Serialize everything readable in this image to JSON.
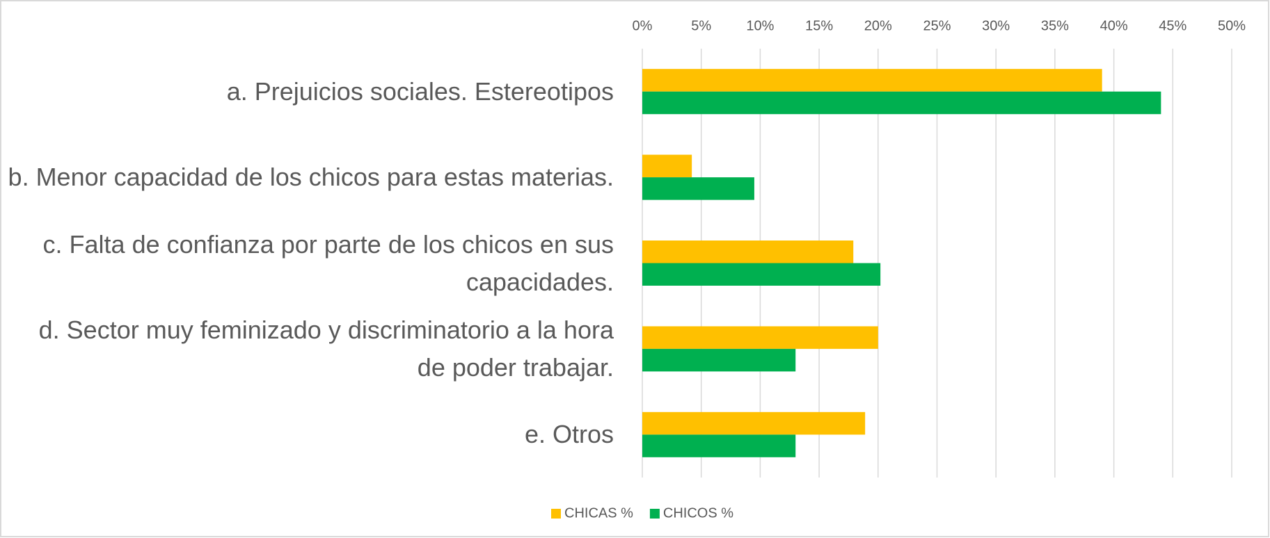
{
  "chart_data": {
    "type": "bar",
    "orientation": "horizontal",
    "categories": [
      "a. Prejuicios sociales. Estereotipos",
      "b. Menor capacidad de los chicos para estas materias.",
      "c. Falta de confianza por parte de los chicos en sus capacidades.",
      "d. Sector muy feminizado y discriminatorio a la hora de poder trabajar.",
      "e. Otros"
    ],
    "series": [
      {
        "name": "CHICAS %",
        "color": "#ffc000",
        "values": [
          39,
          4.2,
          17.9,
          20,
          18.9
        ]
      },
      {
        "name": "CHICOS %",
        "color": "#00b050",
        "values": [
          44,
          9.5,
          20.2,
          13,
          13
        ]
      }
    ],
    "xlim": [
      0,
      50
    ],
    "xticks": [
      {
        "value": 0,
        "label": "0%"
      },
      {
        "value": 5,
        "label": "5%"
      },
      {
        "value": 10,
        "label": "10%"
      },
      {
        "value": 15,
        "label": "15%"
      },
      {
        "value": 20,
        "label": "20%"
      },
      {
        "value": 25,
        "label": "25%"
      },
      {
        "value": 30,
        "label": "30%"
      },
      {
        "value": 35,
        "label": "35%"
      },
      {
        "value": 40,
        "label": "40%"
      },
      {
        "value": 45,
        "label": "45%"
      },
      {
        "value": 50,
        "label": "50%"
      }
    ],
    "grid": true,
    "legend": "bottom"
  }
}
